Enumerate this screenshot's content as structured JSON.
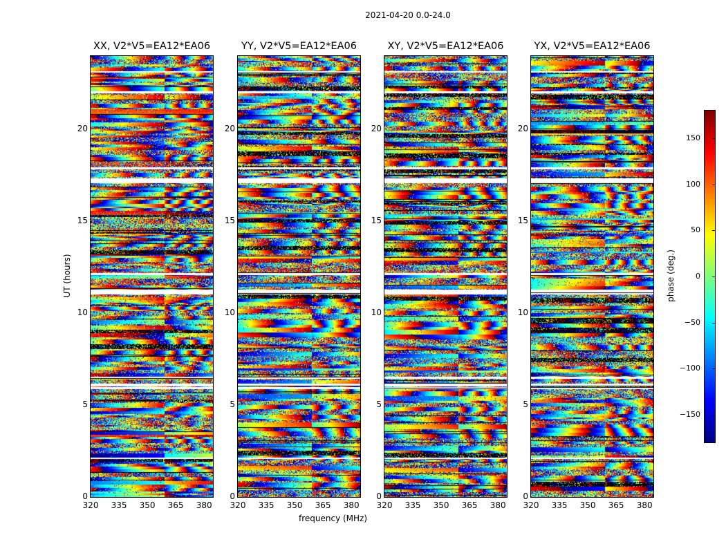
{
  "chart_data": {
    "type": "heatmap",
    "title": "2021-04-20 0.0-24.0",
    "xlabel": "frequency (MHz)",
    "ylabel": "UT (hours)",
    "xlim": [
      320,
      384.7
    ],
    "ylim": [
      0,
      24
    ],
    "xticks": [
      "320",
      "335",
      "350",
      "365",
      "380"
    ],
    "xtick_values": [
      320,
      335,
      350,
      365,
      380
    ],
    "yticks": [
      "0",
      "5",
      "10",
      "15",
      "20"
    ],
    "ytick_values": [
      0,
      5,
      10,
      15,
      20
    ],
    "panels": [
      {
        "title": "XX, V2*V5=EA12*EA06"
      },
      {
        "title": "YY, V2*V5=EA12*EA06"
      },
      {
        "title": "XY, V2*V5=EA12*EA06"
      },
      {
        "title": "YX, V2*V5=EA12*EA06"
      }
    ],
    "flagged_hours": [
      [
        6.05,
        6.2
      ],
      [
        6.45,
        6.55
      ],
      [
        11.05,
        11.3
      ],
      [
        12.1,
        12.2
      ],
      [
        17.1,
        17.35
      ],
      [
        17.85,
        17.95
      ],
      [
        22.0,
        22.1
      ],
      [
        23.1,
        23.2
      ],
      [
        2.1,
        2.15
      ],
      [
        5.9,
        6.0
      ]
    ],
    "colorbar": {
      "label": "phase (deg.)",
      "range": [
        -180,
        180
      ],
      "ticks": [
        "150",
        "100",
        "50",
        "0",
        "−50",
        "−100",
        "−150"
      ],
      "tick_values": [
        150,
        100,
        50,
        0,
        -50,
        -100,
        -150
      ],
      "colormap": "jet"
    }
  }
}
